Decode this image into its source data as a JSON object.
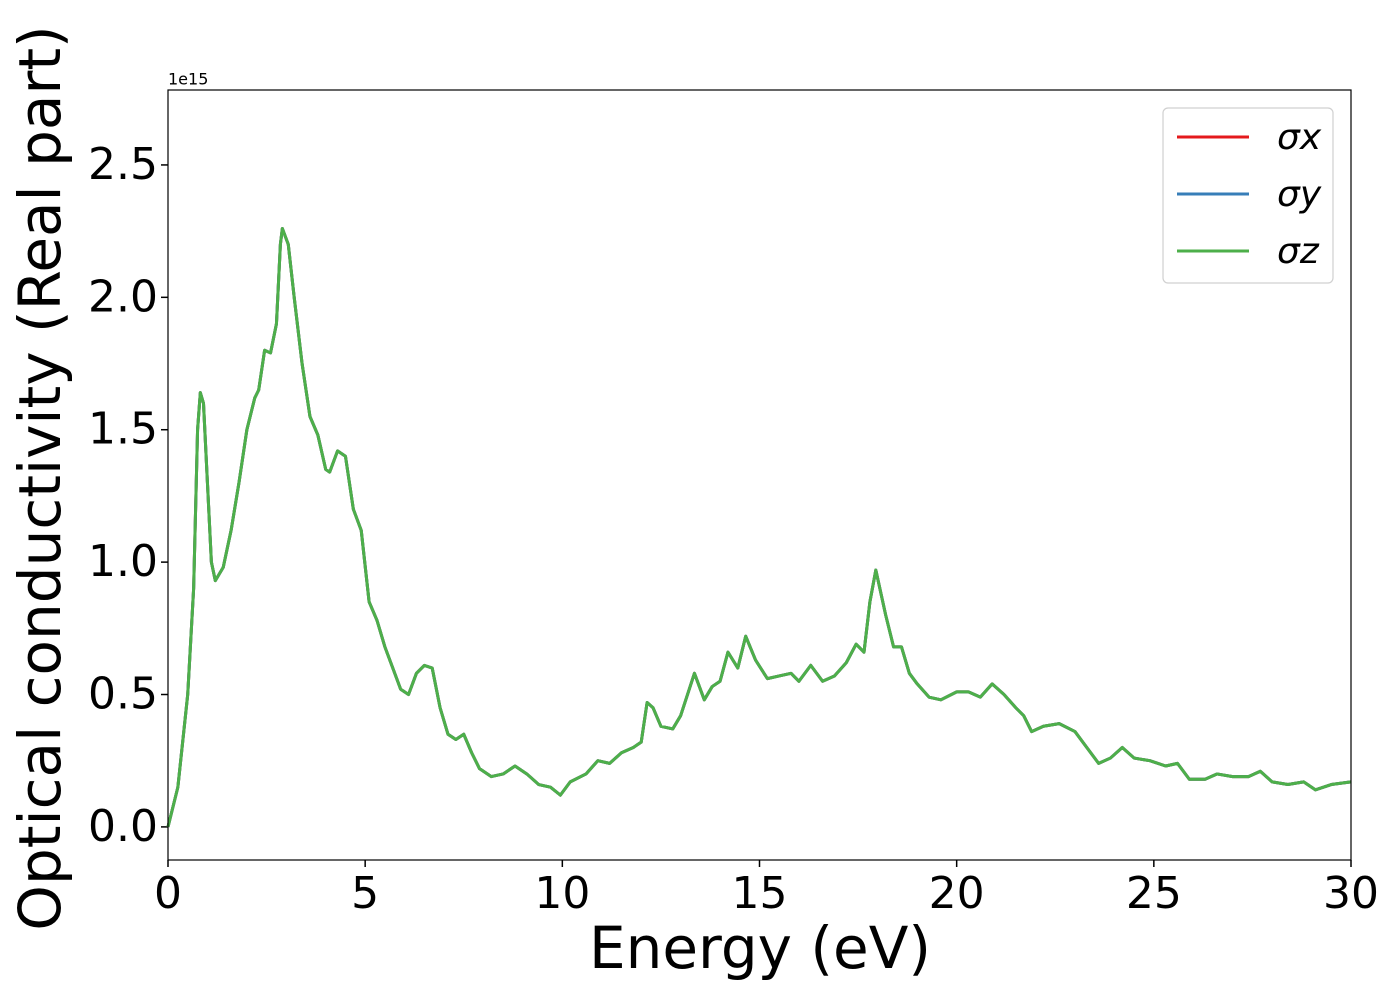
{
  "chart_data": {
    "type": "line",
    "xlabel": "Energy (eV)",
    "ylabel": "Optical conductivity (Real part)",
    "y_offset_label": "1e15",
    "x": [
      0,
      0.25,
      0.5,
      0.65,
      0.75,
      0.82,
      0.9,
      1.0,
      1.1,
      1.2,
      1.4,
      1.6,
      1.8,
      2.0,
      2.2,
      2.3,
      2.45,
      2.6,
      2.75,
      2.85,
      2.9,
      3.05,
      3.2,
      3.4,
      3.6,
      3.8,
      4.0,
      4.1,
      4.3,
      4.5,
      4.7,
      4.9,
      5.1,
      5.3,
      5.5,
      5.7,
      5.9,
      6.1,
      6.3,
      6.5,
      6.7,
      6.9,
      7.1,
      7.3,
      7.5,
      7.7,
      7.9,
      8.2,
      8.5,
      8.8,
      9.1,
      9.4,
      9.7,
      9.95,
      10.2,
      10.6,
      10.9,
      11.2,
      11.5,
      11.8,
      12.0,
      12.15,
      12.3,
      12.5,
      12.8,
      13.0,
      13.35,
      13.6,
      13.8,
      14.0,
      14.2,
      14.45,
      14.65,
      14.9,
      15.2,
      15.5,
      15.8,
      16.0,
      16.3,
      16.6,
      16.9,
      17.2,
      17.45,
      17.65,
      17.8,
      17.95,
      18.2,
      18.4,
      18.6,
      18.8,
      19.0,
      19.3,
      19.6,
      20.0,
      20.3,
      20.6,
      20.9,
      21.2,
      21.5,
      21.7,
      21.9,
      22.2,
      22.6,
      23.0,
      23.3,
      23.6,
      23.9,
      24.2,
      24.5,
      24.9,
      25.3,
      25.6,
      25.9,
      26.3,
      26.6,
      27.0,
      27.4,
      27.7,
      28.0,
      28.4,
      28.8,
      29.1,
      29.5,
      30.0
    ],
    "series": [
      {
        "name": "σx",
        "color": "#e41a1c",
        "values": [
          0.0,
          0.15,
          0.5,
          0.9,
          1.5,
          1.64,
          1.6,
          1.3,
          1.0,
          0.93,
          0.98,
          1.12,
          1.3,
          1.5,
          1.62,
          1.65,
          1.8,
          1.79,
          1.9,
          2.2,
          2.26,
          2.2,
          2.0,
          1.75,
          1.55,
          1.48,
          1.35,
          1.34,
          1.42,
          1.4,
          1.2,
          1.12,
          0.85,
          0.78,
          0.68,
          0.6,
          0.52,
          0.5,
          0.58,
          0.61,
          0.6,
          0.45,
          0.35,
          0.33,
          0.35,
          0.28,
          0.22,
          0.19,
          0.2,
          0.23,
          0.2,
          0.16,
          0.15,
          0.12,
          0.17,
          0.2,
          0.25,
          0.24,
          0.28,
          0.3,
          0.32,
          0.47,
          0.45,
          0.38,
          0.37,
          0.42,
          0.58,
          0.48,
          0.53,
          0.55,
          0.66,
          0.6,
          0.72,
          0.63,
          0.56,
          0.57,
          0.58,
          0.55,
          0.61,
          0.55,
          0.57,
          0.62,
          0.69,
          0.66,
          0.85,
          0.97,
          0.8,
          0.68,
          0.68,
          0.58,
          0.54,
          0.49,
          0.48,
          0.51,
          0.51,
          0.49,
          0.54,
          0.5,
          0.45,
          0.42,
          0.36,
          0.38,
          0.39,
          0.36,
          0.3,
          0.24,
          0.26,
          0.3,
          0.26,
          0.25,
          0.23,
          0.24,
          0.18,
          0.18,
          0.2,
          0.19,
          0.19,
          0.21,
          0.17,
          0.16,
          0.17,
          0.14,
          0.16,
          0.17
        ]
      },
      {
        "name": "σy",
        "color": "#377eb8",
        "values": [
          0.0,
          0.15,
          0.5,
          0.9,
          1.5,
          1.64,
          1.6,
          1.3,
          1.0,
          0.93,
          0.98,
          1.12,
          1.3,
          1.5,
          1.62,
          1.65,
          1.8,
          1.79,
          1.9,
          2.2,
          2.26,
          2.2,
          2.0,
          1.75,
          1.55,
          1.48,
          1.35,
          1.34,
          1.42,
          1.4,
          1.2,
          1.12,
          0.85,
          0.78,
          0.68,
          0.6,
          0.52,
          0.5,
          0.58,
          0.61,
          0.6,
          0.45,
          0.35,
          0.33,
          0.35,
          0.28,
          0.22,
          0.19,
          0.2,
          0.23,
          0.2,
          0.16,
          0.15,
          0.12,
          0.17,
          0.2,
          0.25,
          0.24,
          0.28,
          0.3,
          0.32,
          0.47,
          0.45,
          0.38,
          0.37,
          0.42,
          0.58,
          0.48,
          0.53,
          0.55,
          0.66,
          0.6,
          0.72,
          0.63,
          0.56,
          0.57,
          0.58,
          0.55,
          0.61,
          0.55,
          0.57,
          0.62,
          0.69,
          0.66,
          0.85,
          0.97,
          0.8,
          0.68,
          0.68,
          0.58,
          0.54,
          0.49,
          0.48,
          0.51,
          0.51,
          0.49,
          0.54,
          0.5,
          0.45,
          0.42,
          0.36,
          0.38,
          0.39,
          0.36,
          0.3,
          0.24,
          0.26,
          0.3,
          0.26,
          0.25,
          0.23,
          0.24,
          0.18,
          0.18,
          0.2,
          0.19,
          0.19,
          0.21,
          0.17,
          0.16,
          0.17,
          0.14,
          0.16,
          0.17
        ]
      },
      {
        "name": "σz",
        "color": "#4daf4a",
        "values": [
          0.0,
          0.15,
          0.5,
          0.9,
          1.5,
          1.64,
          1.6,
          1.3,
          1.0,
          0.93,
          0.98,
          1.12,
          1.3,
          1.5,
          1.62,
          1.65,
          1.8,
          1.79,
          1.9,
          2.2,
          2.26,
          2.2,
          2.0,
          1.75,
          1.55,
          1.48,
          1.35,
          1.34,
          1.42,
          1.4,
          1.2,
          1.12,
          0.85,
          0.78,
          0.68,
          0.6,
          0.52,
          0.5,
          0.58,
          0.61,
          0.6,
          0.45,
          0.35,
          0.33,
          0.35,
          0.28,
          0.22,
          0.19,
          0.2,
          0.23,
          0.2,
          0.16,
          0.15,
          0.12,
          0.17,
          0.2,
          0.25,
          0.24,
          0.28,
          0.3,
          0.32,
          0.47,
          0.45,
          0.38,
          0.37,
          0.42,
          0.58,
          0.48,
          0.53,
          0.55,
          0.66,
          0.6,
          0.72,
          0.63,
          0.56,
          0.57,
          0.58,
          0.55,
          0.61,
          0.55,
          0.57,
          0.62,
          0.69,
          0.66,
          0.85,
          0.97,
          0.8,
          0.68,
          0.68,
          0.58,
          0.54,
          0.49,
          0.48,
          0.51,
          0.51,
          0.49,
          0.54,
          0.5,
          0.45,
          0.42,
          0.36,
          0.38,
          0.39,
          0.36,
          0.3,
          0.24,
          0.26,
          0.3,
          0.26,
          0.25,
          0.23,
          0.24,
          0.18,
          0.18,
          0.2,
          0.19,
          0.19,
          0.21,
          0.17,
          0.16,
          0.17,
          0.14,
          0.16,
          0.17
        ]
      }
    ],
    "xlim": [
      0,
      30
    ],
    "xticks": [
      0,
      5,
      10,
      15,
      20,
      25,
      30
    ],
    "ylim": [
      -0.125,
      2.783
    ],
    "yticks": [
      {
        "value": 0,
        "label": "0.0"
      },
      0.5,
      {
        "value": 1,
        "label": "1.0"
      },
      1.5,
      {
        "value": 2,
        "label": "2.0"
      },
      2.5
    ],
    "legend": "upper right",
    "grid": false
  }
}
